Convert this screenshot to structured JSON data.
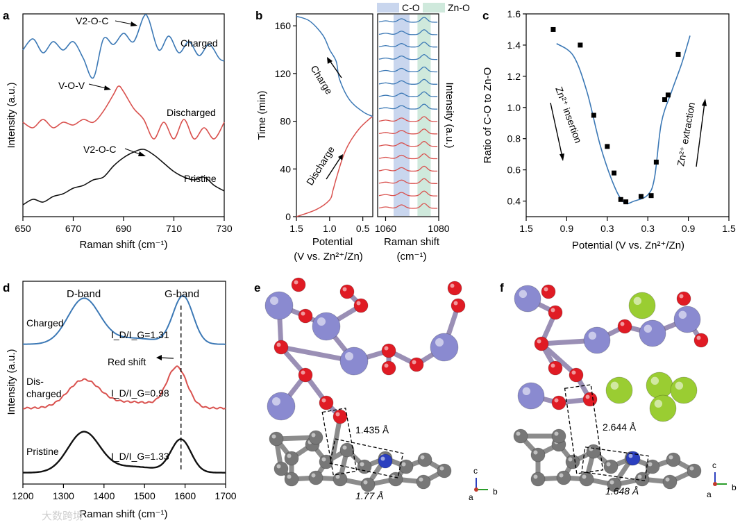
{
  "colors": {
    "blue": "#3b78b5",
    "red": "#d9514e",
    "black": "#111111",
    "co_band": "#c9d6ee",
    "zno_band": "#cfe9dc",
    "o_atom": "#e01b24",
    "v_atom": "#8a8ad0",
    "c_atom": "#777777",
    "n_atom": "#2b3fbf",
    "zn_atom": "#9acd32"
  },
  "watermark": "大数跨境",
  "panels": {
    "a": {
      "letter": "a",
      "xlabel": "Raman shift (cm⁻¹)",
      "ylabel": "Intensity (a.u.)",
      "xticks": [
        "650",
        "670",
        "690",
        "710",
        "730"
      ],
      "labels": {
        "charged": "Charged",
        "discharged": "Discharged",
        "pristine": "Pristine"
      },
      "annotations": {
        "charged": "V2-O-C",
        "discharged": "V-O-V",
        "pristine": "V2-O-C"
      }
    },
    "b": {
      "letter": "b",
      "ylabel": "Time (min)",
      "yticks": [
        "0",
        "40",
        "80",
        "120",
        "160"
      ],
      "left_xticks": [
        "1.5",
        "1.0",
        "0.5"
      ],
      "left_xlabel_1": "Potential",
      "left_xlabel_2": "(V vs. Zn²⁺/Zn)",
      "right_xticks": [
        "1060",
        "1080"
      ],
      "right_xlabel_1": "Raman shift",
      "right_xlabel_2": "(cm⁻¹)",
      "right_ylabel": "Intensity (a.u.)",
      "legend_co": "C-O",
      "legend_zno": "Zn-O",
      "charge_label": "Charge",
      "discharge_label": "Discharge"
    },
    "c": {
      "letter": "c",
      "xlabel": "Potential (V vs. Zn²⁺/Zn)",
      "ylabel": "Ratio of C-O to Zn-O",
      "xticks": [
        "1.5",
        "0.9",
        "0.3",
        "0.3",
        "0.9",
        "1.5"
      ],
      "yticks": [
        "0.4",
        "0.6",
        "0.8",
        "1.0",
        "1.2",
        "1.4",
        "1.6"
      ],
      "insertion_label": "Zn²⁺ insertion",
      "extraction_label": "Zn²⁺ extraction"
    },
    "d": {
      "letter": "d",
      "xlabel": "Raman shift (cm⁻¹)",
      "ylabel": "Intensity (a.u.)",
      "xticks": [
        "1200",
        "1300",
        "1400",
        "1500",
        "1600",
        "1700"
      ],
      "d_band": "D-band",
      "g_band": "G-band",
      "red_shift": "Red shift",
      "charged": "Charged",
      "discharged_1": "Dis-",
      "discharged_2": "charged",
      "pristine": "Pristine",
      "ratio_charged": "I_D/I_G=1.31",
      "ratio_discharged": "I_D/I_G=0.98",
      "ratio_pristine": "I_D/I_G=1.33"
    },
    "e": {
      "letter": "e",
      "dist1": "1.435 Å",
      "dist2": "1.77 Å",
      "axes": {
        "c": "c",
        "a": "a",
        "b": "b"
      }
    },
    "f": {
      "letter": "f",
      "dist1": "2.644 Å",
      "dist2": "1.648 Å",
      "axes": {
        "c": "c",
        "a": "a",
        "b": "b"
      }
    }
  },
  "chart_data": [
    {
      "id": "a",
      "type": "line",
      "x_range": [
        650,
        730
      ],
      "series": [
        {
          "name": "Charged",
          "color": "blue",
          "offset": 2.0,
          "x": [
            650,
            654,
            658,
            662,
            666,
            670,
            674,
            678,
            682,
            686,
            690,
            694,
            698,
            700,
            704,
            708,
            712,
            716,
            720,
            724,
            728,
            730
          ],
          "y": [
            0.35,
            0.55,
            0.3,
            0.5,
            0.35,
            0.5,
            0.2,
            -0.15,
            0.55,
            0.45,
            0.65,
            0.5,
            0.95,
            0.9,
            0.35,
            0.6,
            0.3,
            0.5,
            0.25,
            0.45,
            0.2,
            0.15
          ]
        },
        {
          "name": "Discharged",
          "color": "red",
          "offset": 1.0,
          "x": [
            650,
            654,
            658,
            662,
            666,
            670,
            674,
            678,
            682,
            686,
            688,
            690,
            694,
            698,
            702,
            706,
            710,
            714,
            718,
            722,
            726,
            730
          ],
          "y": [
            0.3,
            0.2,
            0.35,
            0.2,
            0.3,
            0.25,
            0.35,
            0.3,
            0.5,
            0.8,
            0.95,
            0.85,
            0.55,
            0.35,
            0.0,
            0.3,
            0.0,
            0.35,
            0.0,
            0.2,
            0.0,
            0.3
          ]
        },
        {
          "name": "Pristine",
          "color": "black",
          "offset": 0.0,
          "x": [
            650,
            654,
            658,
            662,
            666,
            670,
            674,
            678,
            682,
            686,
            690,
            694,
            698,
            702,
            706,
            710,
            714,
            718,
            722,
            726,
            730
          ],
          "y": [
            0.0,
            0.1,
            0.05,
            0.15,
            0.2,
            0.3,
            0.35,
            0.45,
            0.5,
            0.7,
            0.85,
            0.95,
            1.0,
            0.9,
            0.75,
            0.6,
            0.5,
            0.45,
            0.5,
            0.35,
            0.25
          ]
        }
      ]
    },
    {
      "id": "b_left",
      "type": "line",
      "x_range": [
        1.5,
        0.35
      ],
      "y_range": [
        0,
        170
      ],
      "series": [
        {
          "name": "Discharge",
          "color": "red",
          "x": [
            1.5,
            1.2,
            1.0,
            0.95,
            0.9,
            0.8,
            0.7,
            0.55,
            0.4,
            0.35
          ],
          "y": [
            0,
            6,
            14,
            22,
            32,
            50,
            62,
            74,
            82,
            84
          ]
        },
        {
          "name": "Charge",
          "color": "blue",
          "x": [
            0.35,
            0.5,
            0.7,
            0.85,
            0.9,
            1.0,
            1.1,
            1.3,
            1.5
          ],
          "y": [
            84,
            88,
            98,
            115,
            130,
            140,
            152,
            164,
            168
          ]
        }
      ]
    },
    {
      "id": "b_right",
      "type": "line",
      "x_range": [
        1057,
        1080
      ],
      "co_band": [
        1063,
        1069
      ],
      "zno_band": [
        1072,
        1077
      ],
      "series_count": 16,
      "blue_count": 8,
      "red_count": 8
    },
    {
      "id": "c",
      "type": "scatter",
      "x_range": [
        0,
        6
      ],
      "y_range": [
        0.3,
        1.6
      ],
      "points_x": [
        0.8,
        1.6,
        2.0,
        2.4,
        2.6,
        2.8,
        2.95,
        3.4,
        3.7,
        3.85,
        4.1,
        4.2,
        4.5
      ],
      "points_y": [
        1.5,
        1.4,
        0.95,
        0.75,
        0.58,
        0.41,
        0.395,
        0.43,
        0.435,
        0.65,
        1.05,
        1.08,
        1.34
      ],
      "fit_x": [
        0.9,
        1.4,
        1.8,
        2.2,
        2.6,
        2.9,
        3.2,
        3.6,
        3.8,
        4.0,
        4.3,
        4.6,
        4.85
      ],
      "fit_y": [
        1.41,
        1.33,
        1.1,
        0.75,
        0.5,
        0.39,
        0.4,
        0.44,
        0.55,
        0.9,
        1.1,
        1.28,
        1.46
      ]
    },
    {
      "id": "d",
      "type": "line",
      "x_range": [
        1200,
        1700
      ],
      "g_line_x": 1590,
      "series": [
        {
          "name": "Charged",
          "color": "blue",
          "offset": 2.0,
          "d_peak": 1350,
          "g_peak": 1595,
          "d_h": 0.9,
          "g_h": 0.95
        },
        {
          "name": "Discharged",
          "color": "red",
          "offset": 1.0,
          "d_peak": 1350,
          "g_peak": 1580,
          "d_h": 0.55,
          "g_h": 0.8
        },
        {
          "name": "Pristine",
          "color": "black",
          "offset": 0.0,
          "d_peak": 1350,
          "g_peak": 1590,
          "d_h": 0.8,
          "g_h": 0.65
        }
      ]
    }
  ]
}
